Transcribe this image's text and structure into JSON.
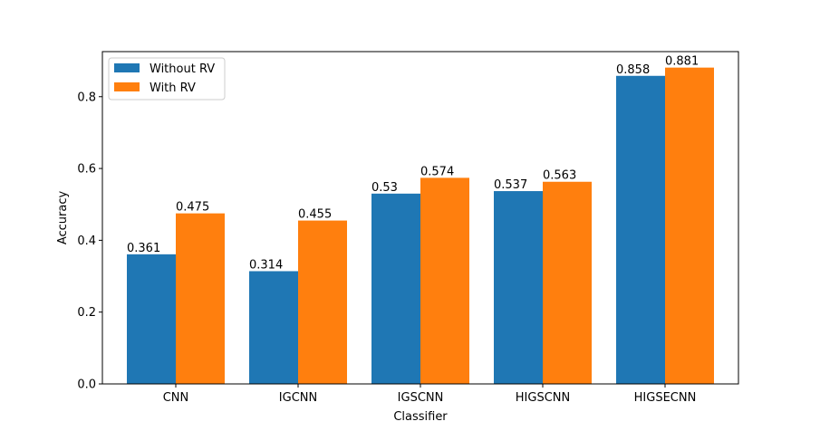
{
  "chart_data": {
    "type": "bar",
    "categories": [
      "CNN",
      "IGCNN",
      "IGSCNN",
      "HIGSCNN",
      "HIGSECNN"
    ],
    "series": [
      {
        "name": "Without RV",
        "values": [
          0.361,
          0.314,
          0.53,
          0.537,
          0.858
        ],
        "labels": [
          "0.361",
          "0.314",
          "0.53",
          "0.537",
          "0.858"
        ],
        "color": "#1f77b4"
      },
      {
        "name": "With RV",
        "values": [
          0.475,
          0.455,
          0.574,
          0.563,
          0.881
        ],
        "labels": [
          "0.475",
          "0.455",
          "0.574",
          "0.563",
          "0.881"
        ],
        "color": "#ff7f0e"
      }
    ],
    "xlabel": "Classifier",
    "ylabel": "Accuracy",
    "ylim": [
      0,
      0.9255
    ],
    "yticks": [
      0.0,
      0.2,
      0.4,
      0.6,
      0.8
    ],
    "ytick_labels": [
      "0.0",
      "0.2",
      "0.4",
      "0.6",
      "0.8"
    ],
    "grid": false,
    "legend_position": "top-left"
  }
}
